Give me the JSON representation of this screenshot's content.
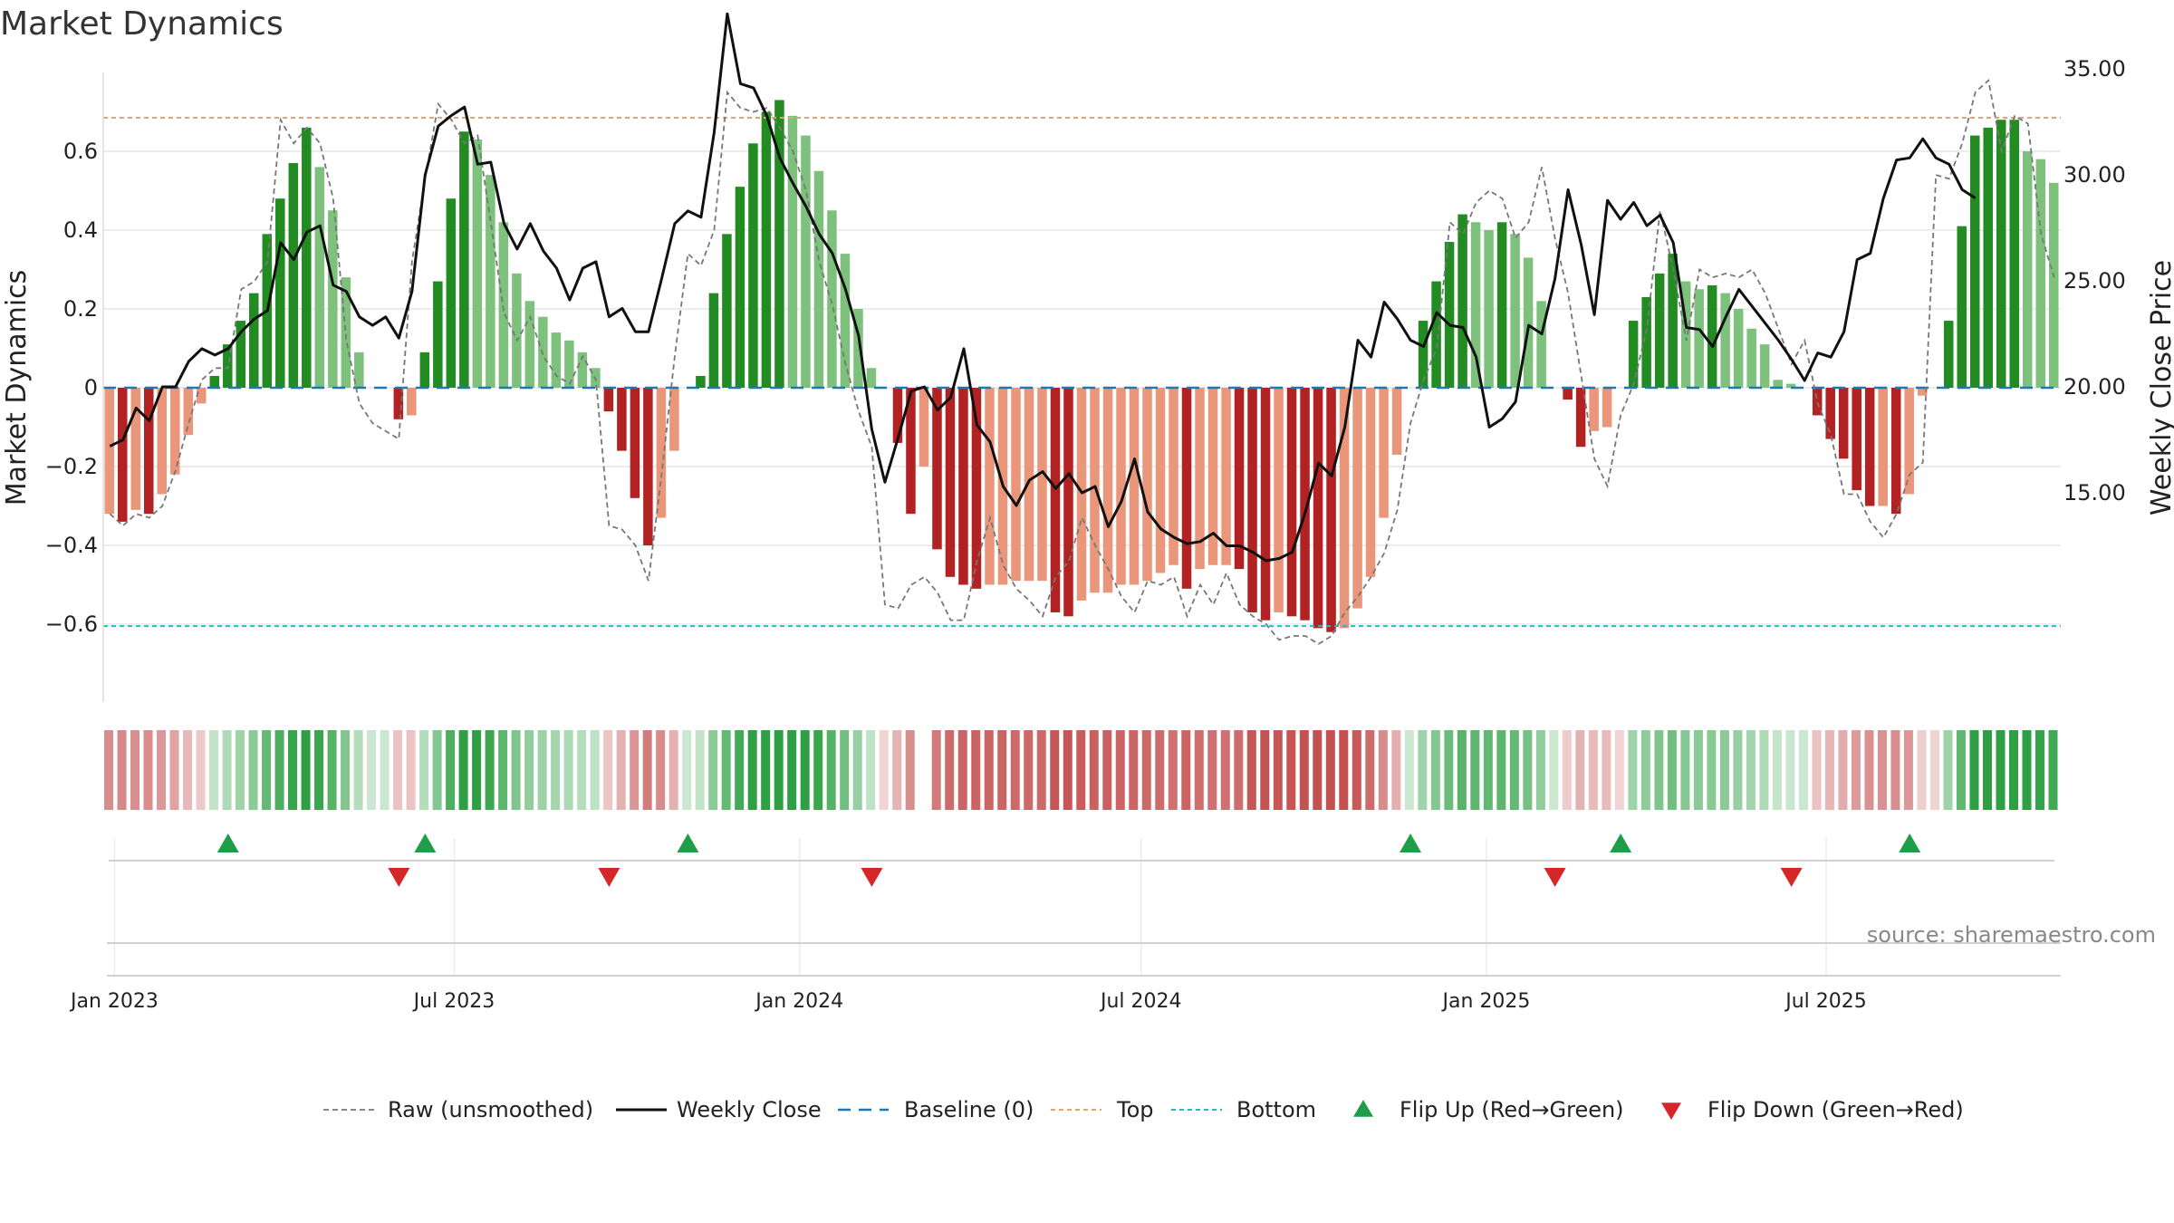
{
  "chart_data": {
    "type": "bar",
    "title": "Market Dynamics",
    "ylabel_left": "Market Dynamics",
    "ylabel_right": "Weekly Close Price",
    "source": "source: sharemaestro.com",
    "ylim_left": [
      -0.79,
      0.8
    ],
    "yticks_left": [
      -0.6,
      -0.4,
      -0.2,
      0,
      0.2,
      0.4,
      0.6
    ],
    "ytick_labels_left": [
      "−0.6",
      "−0.4",
      "−0.2",
      "0",
      "0.2",
      "0.4",
      "0.6"
    ],
    "ylim_right": [
      10.5,
      40.0
    ],
    "yticks_right": [
      15,
      20,
      25,
      30,
      35
    ],
    "ytick_labels_right": [
      "15.00",
      "20.00",
      "25.00",
      "30.00",
      "35.00"
    ],
    "top_level": 0.685,
    "bottom_level": -0.605,
    "start_date": "2022-12-26",
    "date_ticks": [
      {
        "date": "2023-01-01",
        "label": "Jan 2023"
      },
      {
        "date": "2023-07-01",
        "label": "Jul 2023"
      },
      {
        "date": "2024-01-01",
        "label": "Jan 2024"
      },
      {
        "date": "2024-07-01",
        "label": "Jul 2024"
      },
      {
        "date": "2025-01-01",
        "label": "Jan 2025"
      },
      {
        "date": "2025-07-01",
        "label": "Jul 2025"
      }
    ],
    "colors": {
      "pos_strong": "#228B22",
      "pos_weak": "#7DC17D",
      "neg_strong": "#B22222",
      "neg_weak": "#E9967A",
      "close": "#111111",
      "raw": "#777777",
      "baseline": "#1f77b4",
      "top": "#E8A36A",
      "bottom": "#17BECF",
      "flip_up": "#1E9E49",
      "flip_down": "#D62728"
    },
    "series": [
      {
        "name": "Market Dynamics",
        "values": [
          -0.32,
          -0.34,
          -0.31,
          -0.32,
          -0.27,
          -0.22,
          -0.12,
          -0.04,
          0.03,
          0.11,
          0.17,
          0.24,
          0.39,
          0.48,
          0.57,
          0.66,
          0.56,
          0.45,
          0.28,
          0.09,
          0,
          0,
          -0.08,
          -0.07,
          0.09,
          0.27,
          0.48,
          0.65,
          0.63,
          0.54,
          0.42,
          0.29,
          0.22,
          0.18,
          0.14,
          0.12,
          0.09,
          0.05,
          -0.06,
          -0.16,
          -0.28,
          -0.4,
          -0.33,
          -0.16,
          0,
          0.03,
          0.24,
          0.39,
          0.51,
          0.62,
          0.7,
          0.73,
          0.69,
          0.64,
          0.55,
          0.45,
          0.34,
          0.2,
          0.05,
          0,
          -0.14,
          -0.32,
          -0.2,
          -0.41,
          -0.48,
          -0.5,
          -0.51,
          -0.5,
          -0.5,
          -0.49,
          -0.49,
          -0.49,
          -0.57,
          -0.58,
          -0.54,
          -0.52,
          -0.52,
          -0.5,
          -0.5,
          -0.49,
          -0.47,
          -0.45,
          -0.51,
          -0.46,
          -0.45,
          -0.45,
          -0.46,
          -0.57,
          -0.59,
          -0.57,
          -0.58,
          -0.59,
          -0.61,
          -0.62,
          -0.61,
          -0.56,
          -0.48,
          -0.33,
          -0.17,
          0,
          0.17,
          0.27,
          0.37,
          0.44,
          0.42,
          0.4,
          0.42,
          0.39,
          0.33,
          0.22,
          0,
          -0.03,
          -0.15,
          -0.11,
          -0.1,
          0,
          0.17,
          0.23,
          0.29,
          0.34,
          0.27,
          0.25,
          0.26,
          0.24,
          0.2,
          0.15,
          0.11,
          0.02,
          0.01,
          0,
          -0.07,
          -0.13,
          -0.18,
          -0.26,
          -0.3,
          -0.3,
          -0.32,
          -0.27,
          -0.02,
          0,
          0.17,
          0.41,
          0.64,
          0.66,
          0.68,
          0.68,
          0.6,
          0.58,
          0.52
        ]
      },
      {
        "name": "Weekly Close",
        "values": [
          17.2,
          17.5,
          19.0,
          18.4,
          20.0,
          20.0,
          21.2,
          21.8,
          21.5,
          21.8,
          22.6,
          23.2,
          23.6,
          26.8,
          26.0,
          27.3,
          27.6,
          24.8,
          24.5,
          23.3,
          22.9,
          23.3,
          22.3,
          24.5,
          30.0,
          32.3,
          32.8,
          33.2,
          30.5,
          30.6,
          27.7,
          26.5,
          27.7,
          26.4,
          25.6,
          24.1,
          25.6,
          25.9,
          23.3,
          23.7,
          22.6,
          22.6,
          25.1,
          27.7,
          28.3,
          28.0,
          32.0,
          37.6,
          34.3,
          34.1,
          32.8,
          30.8,
          29.6,
          28.5,
          27.2,
          26.3,
          24.6,
          22.4,
          18.0,
          15.5,
          17.6,
          19.8,
          20.0,
          18.9,
          19.5,
          21.8,
          18.2,
          17.4,
          15.3,
          14.4,
          15.6,
          16.0,
          15.2,
          15.9,
          15.0,
          15.3,
          13.4,
          14.6,
          16.6,
          14.1,
          13.3,
          12.9,
          12.6,
          12.7,
          13.1,
          12.5,
          12.5,
          12.2,
          11.8,
          11.9,
          12.2,
          14.1,
          16.4,
          15.8,
          18.1,
          22.2,
          21.4,
          24.0,
          23.2,
          22.2,
          21.9,
          23.5,
          22.9,
          22.8,
          21.4,
          18.1,
          18.5,
          19.3,
          22.9,
          22.5,
          25.1,
          29.3,
          26.7,
          23.4,
          28.8,
          27.9,
          28.7,
          27.6,
          28.1,
          26.8,
          22.8,
          22.7,
          21.9,
          23.3,
          24.6,
          23.8,
          23.0,
          22.2,
          21.3,
          20.3,
          21.6,
          21.4,
          22.6,
          26.0,
          26.3,
          28.9,
          30.7,
          30.8,
          31.7,
          30.8,
          30.5,
          29.3,
          28.9
        ]
      },
      {
        "name": "Raw (unsmoothed)",
        "values": [
          -0.32,
          -0.35,
          -0.32,
          -0.33,
          -0.3,
          -0.21,
          -0.09,
          0.02,
          0.05,
          0.05,
          0.25,
          0.27,
          0.32,
          0.68,
          0.62,
          0.66,
          0.62,
          0.48,
          0.12,
          -0.04,
          -0.09,
          -0.11,
          -0.13,
          0.32,
          0.53,
          0.72,
          0.68,
          0.62,
          0.64,
          0.42,
          0.19,
          0.12,
          0.18,
          0.08,
          0.03,
          0.01,
          0.08,
          0.02,
          -0.35,
          -0.36,
          -0.4,
          -0.49,
          -0.22,
          0.08,
          0.34,
          0.31,
          0.4,
          0.75,
          0.71,
          0.7,
          0.71,
          0.66,
          0.6,
          0.5,
          0.32,
          0.21,
          0.06,
          -0.06,
          -0.15,
          -0.55,
          -0.56,
          -0.5,
          -0.48,
          -0.52,
          -0.59,
          -0.59,
          -0.44,
          -0.33,
          -0.45,
          -0.51,
          -0.54,
          -0.58,
          -0.48,
          -0.44,
          -0.33,
          -0.4,
          -0.46,
          -0.53,
          -0.57,
          -0.49,
          -0.5,
          -0.48,
          -0.58,
          -0.5,
          -0.55,
          -0.47,
          -0.55,
          -0.58,
          -0.6,
          -0.64,
          -0.63,
          -0.63,
          -0.65,
          -0.63,
          -0.57,
          -0.53,
          -0.48,
          -0.42,
          -0.31,
          -0.09,
          0.02,
          0.1,
          0.42,
          0.39,
          0.47,
          0.5,
          0.48,
          0.38,
          0.42,
          0.56,
          0.38,
          0.24,
          0.03,
          -0.18,
          -0.25,
          -0.07,
          0.01,
          0.15,
          0.45,
          0.3,
          0.12,
          0.3,
          0.28,
          0.29,
          0.28,
          0.3,
          0.24,
          0.15,
          0.06,
          0.12,
          -0.04,
          -0.12,
          -0.27,
          -0.27,
          -0.34,
          -0.38,
          -0.32,
          -0.22,
          -0.19,
          0.54,
          0.53,
          0.62,
          0.75,
          0.78,
          0.6,
          0.69,
          0.67,
          0.39,
          0.28
        ]
      }
    ],
    "regime_band": [
      -1,
      -1,
      -1,
      -1,
      -1,
      -1,
      -1,
      -1,
      1,
      1,
      1,
      1,
      1,
      1,
      1,
      1,
      1,
      1,
      1,
      1,
      1,
      1,
      -1,
      -1,
      1,
      1,
      1,
      1,
      1,
      1,
      1,
      1,
      1,
      1,
      1,
      1,
      1,
      1,
      -1,
      -1,
      -1,
      -1,
      -1,
      -1,
      1,
      1,
      1,
      1,
      1,
      1,
      1,
      1,
      1,
      1,
      1,
      1,
      1,
      1,
      1,
      -1,
      -1,
      -1,
      0,
      -1,
      -1,
      -1,
      -1,
      -1,
      -1,
      -1,
      -1,
      -1,
      -1,
      -1,
      -1,
      -1,
      -1,
      -1,
      -1,
      -1,
      -1,
      -1,
      -1,
      -1,
      -1,
      -1,
      -1,
      -1,
      -1,
      -1,
      -1,
      -1,
      -1,
      -1,
      -1,
      -1,
      -1,
      -1,
      -1,
      1,
      1,
      1,
      1,
      1,
      1,
      1,
      1,
      1,
      1,
      1,
      1,
      -1,
      -1,
      -1,
      -1,
      -1,
      1,
      1,
      1,
      1,
      1,
      1,
      1,
      1,
      1,
      1,
      1,
      1,
      1,
      1,
      -1,
      -1,
      -1,
      -1,
      -1,
      -1,
      -1,
      -1,
      -1,
      -1,
      1,
      1,
      1,
      1,
      1,
      1,
      1,
      1,
      1
    ],
    "flips_up": [
      9,
      24,
      44,
      99,
      115,
      137
    ],
    "flips_down": [
      22,
      38,
      58,
      110,
      128
    ],
    "legend": [
      "Raw (unsmoothed)",
      "Weekly Close",
      "Baseline (0)",
      "Top",
      "Bottom",
      "Flip Up (Red→Green)",
      "Flip Down (Green→Red)"
    ],
    "grid": true,
    "legend_placement": "bottom-center"
  }
}
